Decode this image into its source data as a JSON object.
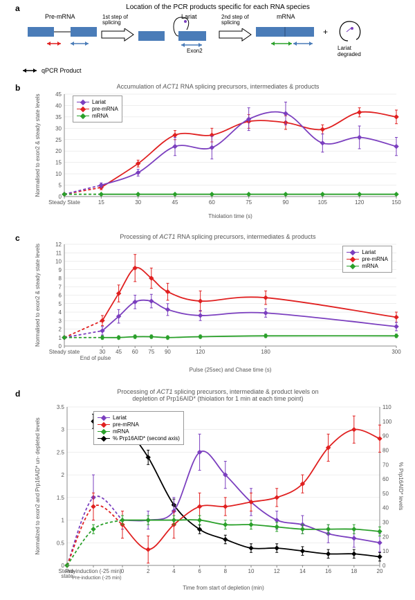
{
  "panelA": {
    "label": "a",
    "title": "Location of the PCR products specific for each RNA species",
    "premrna_label": "Pre-mRNA",
    "step1": "1st step of\nsplicing",
    "lariat_label": "Lariat",
    "step2": "2nd step of\nsplicing",
    "mrna_label": "mRNA",
    "plus": "+",
    "lariat_degraded": "Lariat\ndegraded",
    "exon2_label": "Exon2",
    "legend": "qPCR Product"
  },
  "panelB": {
    "label": "b",
    "title": "Accumulation of ACT1 RNA splicing precursors, intermediates & products",
    "ylabel": "Normalised to exon2 & steady state levels",
    "xlabel": "Thiolation time (s)",
    "ylim": [
      0,
      45
    ],
    "ytick_step": 5,
    "x_categories": [
      "Steady State",
      "15",
      "30",
      "45",
      "60",
      "75",
      "90",
      "105",
      "120",
      "150"
    ],
    "colors": {
      "lariat": "#7b3fbf",
      "premrna": "#e02020",
      "mrna": "#2aa02a"
    },
    "series": {
      "lariat": {
        "y": [
          1,
          5,
          10.5,
          22,
          21.5,
          34,
          36.5,
          23.5,
          26,
          22
        ],
        "err": [
          0,
          1,
          1.5,
          4,
          5,
          5,
          5,
          4,
          5,
          4
        ]
      },
      "premrna": {
        "y": [
          1,
          4,
          14.5,
          27,
          27,
          33,
          32.5,
          29.5,
          37,
          35
        ],
        "err": [
          0,
          1,
          1.5,
          2,
          3,
          3,
          3,
          2,
          2,
          3
        ]
      },
      "mrna": {
        "y": [
          1,
          1,
          1,
          1,
          1,
          1,
          1,
          1,
          1,
          1
        ],
        "err": [
          0,
          0.3,
          0.3,
          0.3,
          0.3,
          0.3,
          0.3,
          0.3,
          0.3,
          0.3
        ]
      }
    },
    "legend": [
      "Lariat",
      "pre-mRNA",
      "mRNA"
    ]
  },
  "panelC": {
    "label": "c",
    "title": "Processing of ACT1 RNA splicing precursors, intermediates & products",
    "ylabel": "Normalised to exon2 & steady state levels",
    "xlabel": "Pulse (25sec) and Chase time (s)",
    "ylim": [
      0,
      12
    ],
    "ytick_step": 1,
    "x_categories": [
      "Steady state",
      "30",
      "45",
      "60",
      "75",
      "90",
      "120",
      "180",
      "300"
    ],
    "end_pulse_label": "End of pulse",
    "colors": {
      "lariat": "#7b3fbf",
      "premrna": "#e02020",
      "mrna": "#2aa02a"
    },
    "series": {
      "lariat": {
        "y": [
          1,
          1.8,
          3.5,
          5.2,
          5.3,
          4.3,
          3.6,
          3.9,
          2.3
        ],
        "err": [
          0,
          0.5,
          0.8,
          0.8,
          0.8,
          0.7,
          0.6,
          0.5,
          0.5
        ]
      },
      "premrna": {
        "y": [
          1,
          3.0,
          6.2,
          9.2,
          8.0,
          6.4,
          5.3,
          5.7,
          3.4
        ],
        "err": [
          0,
          0.6,
          1.0,
          1.6,
          1.2,
          1.0,
          1.2,
          0.8,
          0.6
        ]
      },
      "mrna": {
        "y": [
          1,
          1.0,
          1.0,
          1.1,
          1.1,
          1.0,
          1.1,
          1.2,
          1.2
        ],
        "err": [
          0,
          0.2,
          0.2,
          0.2,
          0.2,
          0.2,
          0.2,
          0.2,
          0.2
        ]
      }
    },
    "legend": [
      "Lariat",
      "pre-mRNA",
      "mRNA"
    ]
  },
  "panelD": {
    "label": "d",
    "title": "Processing of ACT1 splicing precursors, intermediate & product levels on\ndepletion of Prp16AID* (thiolation for 1 min at each time point)",
    "ylabel": "Normalized to exon2 and Prp16AID* un-\ndepleted levels",
    "y2label": "% Prp16AID* levels",
    "xlabel": "Time from start of depletion (min)",
    "ylim": [
      0,
      3.5
    ],
    "ytick_step": 0.5,
    "y2lim": [
      0,
      110
    ],
    "y2tick_step": 10,
    "x_categories": [
      "Steady\nstate",
      "Pre-induction (-25 min)",
      "0",
      "2",
      "4",
      "6",
      "8",
      "10",
      "12",
      "14",
      "16",
      "18",
      "20"
    ],
    "colors": {
      "lariat": "#7b3fbf",
      "premrna": "#e02020",
      "mrna": "#2aa02a",
      "prp16": "#000000"
    },
    "series": {
      "lariat": {
        "y": [
          0,
          1.5,
          1.0,
          1.0,
          1.2,
          2.5,
          2.0,
          1.4,
          1.0,
          0.9,
          0.7,
          0.6,
          0.5
        ],
        "err": [
          0,
          0.5,
          0.2,
          0.2,
          0.3,
          0.4,
          0.3,
          0.3,
          0.2,
          0.2,
          0.2,
          0.2,
          0.2
        ]
      },
      "premrna": {
        "y": [
          0,
          1.3,
          0.9,
          0.35,
          0.9,
          1.3,
          1.3,
          1.4,
          1.5,
          1.8,
          2.6,
          3.0,
          2.8
        ],
        "err": [
          0,
          0.3,
          0.3,
          0.3,
          0.3,
          0.3,
          0.2,
          0.2,
          0.2,
          0.2,
          0.3,
          0.3,
          0.3
        ]
      },
      "mrna": {
        "y": [
          0,
          0.8,
          1.0,
          1.0,
          1.0,
          1.0,
          0.9,
          0.9,
          0.85,
          0.8,
          0.8,
          0.8,
          0.75
        ],
        "err": [
          0,
          0.1,
          0.1,
          0.1,
          0.1,
          0.1,
          0.1,
          0.1,
          0.1,
          0.1,
          0.1,
          0.1,
          0.1
        ]
      },
      "prp16": {
        "y": [
          null,
          100,
          100,
          75,
          42,
          25,
          18,
          12,
          12,
          10,
          8,
          8,
          6
        ],
        "err": [
          0,
          5,
          4,
          5,
          4,
          3,
          3,
          3,
          3,
          3,
          3,
          3,
          3
        ]
      }
    },
    "legend": [
      "Lariat",
      "pre-mRNA",
      "mRNA",
      "% Prp16AID* (second axis)"
    ]
  }
}
